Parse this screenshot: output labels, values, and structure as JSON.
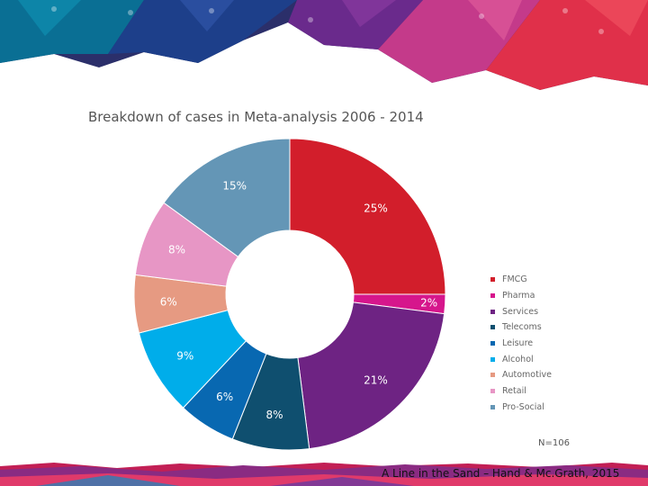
{
  "slide": {
    "n_label": "N=106",
    "citation": "A Line in the Sand – Hand & Mc.Grath, 2015"
  },
  "chart_data": {
    "type": "pie",
    "variant": "donut",
    "title": "Breakdown of cases in Meta-analysis 2006 - 2014",
    "start_angle_deg": 0,
    "direction": "clockwise",
    "legend_position": "right",
    "series": [
      {
        "name": "FMCG",
        "value": 25,
        "label": "25%",
        "color": "#d21e2b"
      },
      {
        "name": "Pharma",
        "value": 2,
        "label": "2%",
        "color": "#d6168c"
      },
      {
        "name": "Services",
        "value": 21,
        "label": "21%",
        "color": "#6e2383"
      },
      {
        "name": "Telecoms",
        "value": 8,
        "label": "8%",
        "color": "#0f4f6f"
      },
      {
        "name": "Leisure",
        "value": 6,
        "label": "6%",
        "color": "#0868b1"
      },
      {
        "name": "Alcohol",
        "value": 9,
        "label": "9%",
        "color": "#00adea"
      },
      {
        "name": "Automotive",
        "value": 6,
        "label": "6%",
        "color": "#e69a82"
      },
      {
        "name": "Retail",
        "value": 8,
        "label": "8%",
        "color": "#e796c5"
      },
      {
        "name": "Pro-Social",
        "value": 15,
        "label": "15%",
        "color": "#6496b6"
      }
    ]
  }
}
